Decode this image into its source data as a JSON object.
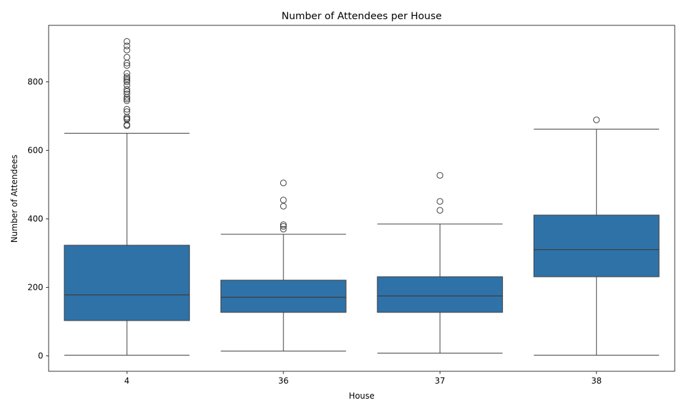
{
  "chart_data": {
    "type": "box",
    "title": "Number of Attendees per House",
    "xlabel": "House",
    "ylabel": "Number of Attendees",
    "ylim": [
      -45,
      965
    ],
    "yticks": [
      0,
      200,
      400,
      600,
      800
    ],
    "grid": false,
    "box_color": "#2f72a8",
    "line_color": "#3d3d3d",
    "categories": [
      "4",
      "36",
      "37",
      "38"
    ],
    "boxes": [
      {
        "name": "4",
        "whisker_low": 2,
        "q1": 103,
        "median": 178,
        "q3": 323,
        "whisker_high": 650,
        "outliers": [
          672,
          675,
          690,
          693,
          697,
          713,
          720,
          745,
          750,
          755,
          765,
          772,
          778,
          790,
          800,
          805,
          810,
          815,
          825,
          848,
          855,
          872,
          893,
          905,
          918
        ]
      },
      {
        "name": "36",
        "whisker_low": 14,
        "q1": 127,
        "median": 171,
        "q3": 221,
        "whisker_high": 355,
        "outliers": [
          370,
          378,
          383,
          437,
          455,
          505
        ]
      },
      {
        "name": "37",
        "whisker_low": 8,
        "q1": 127,
        "median": 175,
        "q3": 231,
        "whisker_high": 385,
        "outliers": [
          425,
          451,
          527
        ]
      },
      {
        "name": "38",
        "whisker_low": 2,
        "q1": 231,
        "median": 310,
        "q3": 411,
        "whisker_high": 662,
        "outliers": [
          689
        ]
      }
    ]
  }
}
